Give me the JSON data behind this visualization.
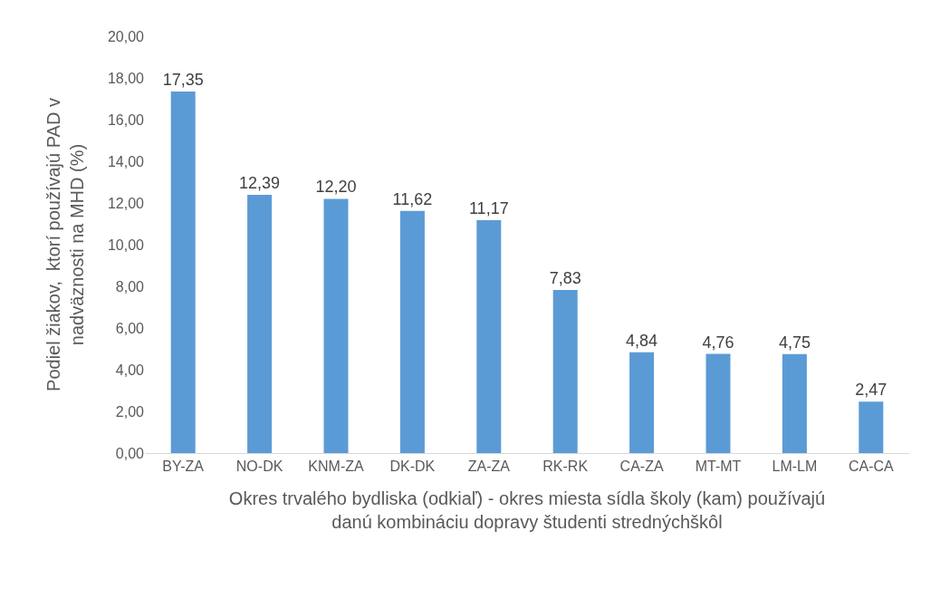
{
  "chart_data": {
    "type": "bar",
    "xlabel": "Okres trvalého bydliska (odkiaľ) - okres miesta sídla školy (kam) používajú\ndanú kombináciu dopravy študenti strednýchškôl",
    "ylabel": "Podiel žiakov,  ktorí používajú PAD v\nnadväznosti na MHD (%)",
    "categories": [
      "BY-ZA",
      "NO-DK",
      "KNM-ZA",
      "DK-DK",
      "ZA-ZA",
      "RK-RK",
      "CA-ZA",
      "MT-MT",
      "LM-LM",
      "CA-CA"
    ],
    "values": [
      17.35,
      12.39,
      12.2,
      11.62,
      11.17,
      7.83,
      4.84,
      4.76,
      4.75,
      2.47
    ],
    "value_labels": [
      "17,35",
      "12,39",
      "12,20",
      "11,62",
      "11,17",
      "7,83",
      "4,84",
      "4,76",
      "4,75",
      "2,47"
    ],
    "color": "#5b9bd5",
    "ylim": [
      0,
      20
    ],
    "yticks": [
      {
        "value": 0,
        "label": "0,00"
      },
      {
        "value": 2,
        "label": "2,00"
      },
      {
        "value": 4,
        "label": "4,00"
      },
      {
        "value": 6,
        "label": "6,00"
      },
      {
        "value": 8,
        "label": "8,00"
      },
      {
        "value": 10,
        "label": "10,00"
      },
      {
        "value": 12,
        "label": "12,00"
      },
      {
        "value": 14,
        "label": "14,00"
      },
      {
        "value": 16,
        "label": "16,00"
      },
      {
        "value": 18,
        "label": "18,00"
      },
      {
        "value": 20,
        "label": "20,00"
      }
    ],
    "grid": false
  }
}
